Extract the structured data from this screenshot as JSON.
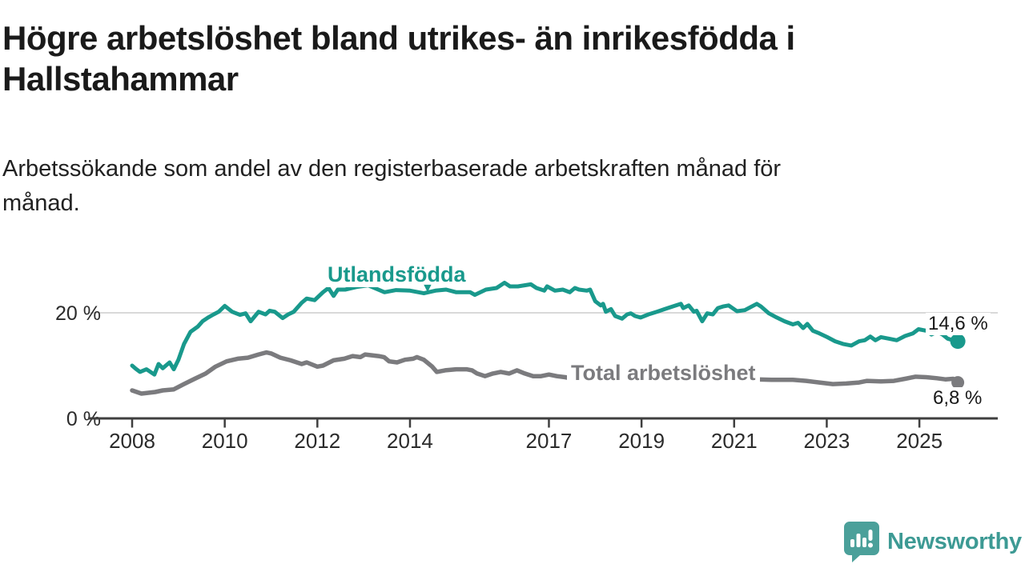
{
  "header": {
    "title_lines": [
      "Högre arbetslöshet bland utrikes- än inrikesfödda i",
      "Hallstahammar"
    ],
    "subtitle_lines": [
      "Arbetssökande som andel av den registerbaserade arbetskraften månad för",
      "månad."
    ]
  },
  "footer": {
    "brand": "Newsworthy"
  },
  "colors": {
    "accent_teal": "#19998c",
    "line_gray": "#7b7b7e",
    "axis": "#3f3f3f",
    "gridline": "#d9d9d9",
    "logo_teal": "#4ba09a",
    "brand_text_teal": "#3d9a94",
    "tick_text": "#2b2b2b"
  },
  "chart_data": {
    "type": "line",
    "title": "Högre arbetslöshet bland utrikes- än inrikesfödda i Hallstahammar",
    "subtitle": "Arbetssökande som andel av den registerbaserade arbetskraften månad för månad.",
    "unit": "%",
    "x_axis": {
      "ticks": [
        2008,
        2010,
        2012,
        2014,
        2017,
        2019,
        2021,
        2023,
        2025
      ],
      "range": [
        2007.0,
        2026.7
      ]
    },
    "y_axis": {
      "ticks": [
        {
          "value": 0,
          "label": "0 %"
        },
        {
          "value": 20,
          "label": "20 %"
        }
      ],
      "range": [
        0,
        28
      ],
      "grid": "horizontal-only"
    },
    "legend_position": "inline-annotations",
    "series": [
      {
        "name": "Utlandsfödda",
        "color": "#19998c",
        "end_label": "14,6 %",
        "end_value": 14.6,
        "points": [
          [
            2008.0,
            10.0
          ],
          [
            2008.08,
            9.4
          ],
          [
            2008.17,
            8.8
          ],
          [
            2008.31,
            9.3
          ],
          [
            2008.48,
            8.3
          ],
          [
            2008.57,
            10.3
          ],
          [
            2008.66,
            9.5
          ],
          [
            2008.81,
            10.6
          ],
          [
            2008.9,
            9.3
          ],
          [
            2009.0,
            11.1
          ],
          [
            2009.12,
            14.1
          ],
          [
            2009.26,
            16.4
          ],
          [
            2009.42,
            17.4
          ],
          [
            2009.52,
            18.4
          ],
          [
            2009.64,
            19.1
          ],
          [
            2009.76,
            19.7
          ],
          [
            2009.87,
            20.2
          ],
          [
            2010.0,
            21.3
          ],
          [
            2010.16,
            20.2
          ],
          [
            2010.33,
            19.6
          ],
          [
            2010.45,
            19.9
          ],
          [
            2010.56,
            18.4
          ],
          [
            2010.73,
            20.2
          ],
          [
            2010.88,
            19.7
          ],
          [
            2010.97,
            20.4
          ],
          [
            2011.08,
            20.2
          ],
          [
            2011.25,
            19.0
          ],
          [
            2011.37,
            19.7
          ],
          [
            2011.49,
            20.2
          ],
          [
            2011.66,
            21.9
          ],
          [
            2011.77,
            22.7
          ],
          [
            2011.94,
            22.4
          ],
          [
            2012.12,
            23.9
          ],
          [
            2012.24,
            24.7
          ],
          [
            2012.35,
            23.2
          ],
          [
            2012.44,
            24.4
          ],
          [
            2012.6,
            24.4
          ],
          [
            2012.85,
            24.9
          ],
          [
            2013.1,
            25.2
          ],
          [
            2013.45,
            23.9
          ],
          [
            2013.7,
            24.3
          ],
          [
            2014.0,
            24.2
          ],
          [
            2014.3,
            23.7
          ],
          [
            2014.55,
            24.2
          ],
          [
            2014.78,
            24.4
          ],
          [
            2015.0,
            23.9
          ],
          [
            2015.3,
            23.9
          ],
          [
            2015.4,
            23.4
          ],
          [
            2015.64,
            24.4
          ],
          [
            2015.87,
            24.7
          ],
          [
            2016.04,
            25.7
          ],
          [
            2016.16,
            25.0
          ],
          [
            2016.33,
            25.0
          ],
          [
            2016.61,
            25.4
          ],
          [
            2016.73,
            24.7
          ],
          [
            2016.9,
            24.2
          ],
          [
            2016.96,
            25.0
          ],
          [
            2017.13,
            24.2
          ],
          [
            2017.3,
            24.4
          ],
          [
            2017.45,
            23.9
          ],
          [
            2017.56,
            24.7
          ],
          [
            2017.65,
            24.4
          ],
          [
            2017.82,
            24.2
          ],
          [
            2017.89,
            24.4
          ],
          [
            2018.0,
            22.2
          ],
          [
            2018.12,
            21.4
          ],
          [
            2018.17,
            21.7
          ],
          [
            2018.23,
            20.2
          ],
          [
            2018.34,
            20.7
          ],
          [
            2018.43,
            19.4
          ],
          [
            2018.58,
            18.9
          ],
          [
            2018.69,
            19.7
          ],
          [
            2018.77,
            19.9
          ],
          [
            2018.86,
            19.4
          ],
          [
            2018.98,
            19.1
          ],
          [
            2019.15,
            19.7
          ],
          [
            2019.33,
            20.2
          ],
          [
            2019.5,
            20.7
          ],
          [
            2019.67,
            21.2
          ],
          [
            2019.85,
            21.7
          ],
          [
            2019.9,
            20.9
          ],
          [
            2020.02,
            21.4
          ],
          [
            2020.13,
            20.2
          ],
          [
            2020.19,
            20.4
          ],
          [
            2020.31,
            18.4
          ],
          [
            2020.42,
            19.9
          ],
          [
            2020.54,
            19.7
          ],
          [
            2020.65,
            20.9
          ],
          [
            2020.76,
            21.2
          ],
          [
            2020.88,
            21.4
          ],
          [
            2021.06,
            20.3
          ],
          [
            2021.23,
            20.5
          ],
          [
            2021.49,
            21.7
          ],
          [
            2021.58,
            21.2
          ],
          [
            2021.75,
            19.9
          ],
          [
            2021.92,
            19.1
          ],
          [
            2022.09,
            18.4
          ],
          [
            2022.27,
            17.8
          ],
          [
            2022.38,
            18.1
          ],
          [
            2022.49,
            17.1
          ],
          [
            2022.58,
            17.9
          ],
          [
            2022.7,
            16.6
          ],
          [
            2022.84,
            16.1
          ],
          [
            2023.01,
            15.4
          ],
          [
            2023.18,
            14.6
          ],
          [
            2023.35,
            14.1
          ],
          [
            2023.53,
            13.8
          ],
          [
            2023.7,
            14.6
          ],
          [
            2023.82,
            14.8
          ],
          [
            2023.94,
            15.5
          ],
          [
            2024.05,
            14.8
          ],
          [
            2024.17,
            15.4
          ],
          [
            2024.34,
            15.1
          ],
          [
            2024.51,
            14.8
          ],
          [
            2024.69,
            15.6
          ],
          [
            2024.86,
            16.1
          ],
          [
            2024.98,
            16.9
          ],
          [
            2025.15,
            16.6
          ],
          [
            2025.26,
            15.9
          ],
          [
            2025.38,
            16.4
          ],
          [
            2025.5,
            15.9
          ],
          [
            2025.61,
            15.1
          ],
          [
            2025.73,
            14.8
          ],
          [
            2025.83,
            14.6
          ]
        ]
      },
      {
        "name": "Total arbetslöshet",
        "color": "#7b7b7e",
        "end_label": "6,8 %",
        "end_value": 6.8,
        "points": [
          [
            2008.0,
            5.3
          ],
          [
            2008.2,
            4.7
          ],
          [
            2008.5,
            5.0
          ],
          [
            2008.66,
            5.3
          ],
          [
            2008.9,
            5.5
          ],
          [
            2009.12,
            6.5
          ],
          [
            2009.35,
            7.5
          ],
          [
            2009.59,
            8.5
          ],
          [
            2009.8,
            9.8
          ],
          [
            2010.04,
            10.8
          ],
          [
            2010.28,
            11.3
          ],
          [
            2010.5,
            11.5
          ],
          [
            2010.73,
            12.1
          ],
          [
            2010.9,
            12.5
          ],
          [
            2011.0,
            12.3
          ],
          [
            2011.2,
            11.5
          ],
          [
            2011.42,
            11.0
          ],
          [
            2011.66,
            10.3
          ],
          [
            2011.77,
            10.6
          ],
          [
            2012.0,
            9.8
          ],
          [
            2012.12,
            10.0
          ],
          [
            2012.35,
            11.0
          ],
          [
            2012.58,
            11.3
          ],
          [
            2012.76,
            11.8
          ],
          [
            2012.93,
            11.6
          ],
          [
            2013.03,
            12.1
          ],
          [
            2013.32,
            11.8
          ],
          [
            2013.44,
            11.6
          ],
          [
            2013.55,
            10.8
          ],
          [
            2013.72,
            10.6
          ],
          [
            2013.89,
            11.1
          ],
          [
            2014.07,
            11.3
          ],
          [
            2014.15,
            11.6
          ],
          [
            2014.3,
            11.1
          ],
          [
            2014.48,
            9.8
          ],
          [
            2014.58,
            8.8
          ],
          [
            2014.76,
            9.1
          ],
          [
            2015.0,
            9.3
          ],
          [
            2015.22,
            9.3
          ],
          [
            2015.34,
            9.1
          ],
          [
            2015.45,
            8.5
          ],
          [
            2015.62,
            8.0
          ],
          [
            2015.79,
            8.5
          ],
          [
            2015.96,
            8.8
          ],
          [
            2016.14,
            8.5
          ],
          [
            2016.31,
            9.1
          ],
          [
            2016.48,
            8.5
          ],
          [
            2016.66,
            8.0
          ],
          [
            2016.83,
            8.0
          ],
          [
            2017.0,
            8.3
          ],
          [
            2017.17,
            8.0
          ],
          [
            2017.35,
            7.8
          ],
          [
            2017.52,
            7.5
          ],
          [
            2017.69,
            7.8
          ],
          [
            2017.9,
            8.0
          ],
          [
            2018.2,
            7.9
          ],
          [
            2018.5,
            7.7
          ],
          [
            2018.8,
            7.8
          ],
          [
            2019.1,
            7.6
          ],
          [
            2019.4,
            7.5
          ],
          [
            2019.7,
            7.6
          ],
          [
            2020.0,
            7.7
          ],
          [
            2020.3,
            7.9
          ],
          [
            2020.6,
            7.8
          ],
          [
            2020.9,
            7.6
          ],
          [
            2021.2,
            7.5
          ],
          [
            2021.5,
            7.4
          ],
          [
            2021.8,
            7.3
          ],
          [
            2022.0,
            7.3
          ],
          [
            2022.27,
            7.3
          ],
          [
            2022.56,
            7.1
          ],
          [
            2022.84,
            6.8
          ],
          [
            2023.13,
            6.5
          ],
          [
            2023.42,
            6.6
          ],
          [
            2023.7,
            6.8
          ],
          [
            2023.87,
            7.1
          ],
          [
            2024.17,
            7.0
          ],
          [
            2024.45,
            7.1
          ],
          [
            2024.69,
            7.5
          ],
          [
            2024.91,
            7.9
          ],
          [
            2025.15,
            7.8
          ],
          [
            2025.38,
            7.6
          ],
          [
            2025.56,
            7.4
          ],
          [
            2025.73,
            7.5
          ],
          [
            2025.83,
            6.8
          ]
        ]
      }
    ]
  }
}
